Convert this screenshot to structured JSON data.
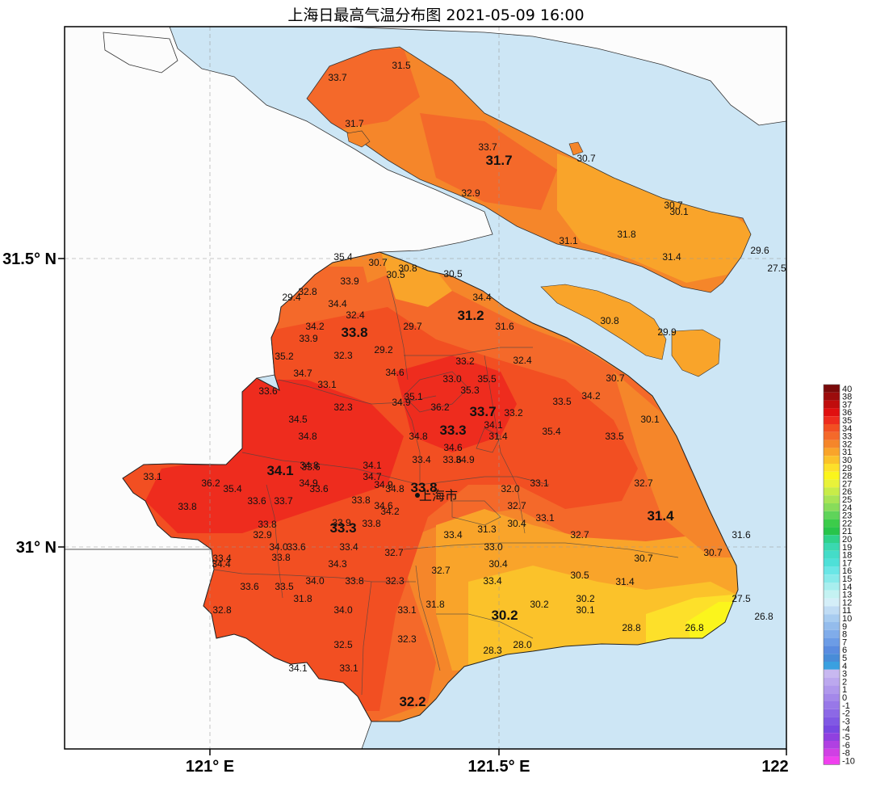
{
  "title": "上海日最高气温分布图 2021-05-09 16:00",
  "axes": {
    "lat_labels": [
      "31.5° N",
      "31° N"
    ],
    "lon_labels": [
      "121° E",
      "121.5° E",
      "122"
    ]
  },
  "city_label": "上海市",
  "colors": {
    "sea": "#cde6f5",
    "land_outside": "#fcfcfc",
    "t34": "#ee2c1e",
    "t33": "#f24f22",
    "t32": "#f4692a",
    "t31": "#f5862a",
    "t30": "#f9a42a",
    "t29": "#fbc22a",
    "t28": "#fde02a",
    "t27": "#fbf51c"
  },
  "legend": {
    "labels": [
      "40",
      "38",
      "37",
      "36",
      "35",
      "34",
      "33",
      "32",
      "31",
      "30",
      "29",
      "28",
      "27",
      "26",
      "25",
      "24",
      "23",
      "22",
      "21",
      "20",
      "19",
      "18",
      "17",
      "16",
      "15",
      "14",
      "13",
      "12",
      "11",
      "10",
      "9",
      "8",
      "7",
      "6",
      "5",
      "4",
      "3",
      "2",
      "1",
      "0",
      "-1",
      "-2",
      "-3",
      "-4",
      "-5",
      "-6",
      "-8",
      "-10"
    ],
    "colors": [
      "#7a0a0a",
      "#9c0c0c",
      "#c00d0d",
      "#e01010",
      "#ee2c1e",
      "#f24f22",
      "#f4692a",
      "#f5862a",
      "#f9a42a",
      "#fbc22a",
      "#fde02a",
      "#fbf51c",
      "#e8f23a",
      "#c8ec48",
      "#a8e455",
      "#88dc5a",
      "#5fd45a",
      "#3ccc4a",
      "#28c44a",
      "#2fd28a",
      "#3ad8b0",
      "#44dcc8",
      "#4ee0d8",
      "#6ae6e6",
      "#88eaea",
      "#a8eeee",
      "#c4f2f2",
      "#d4eef8",
      "#c0dcf4",
      "#a8ccf0",
      "#94bcec",
      "#80acea",
      "#6c9ce6",
      "#5a8ce0",
      "#488cd8",
      "#3aa0e0",
      "#c8b8f0",
      "#bca8ee",
      "#b098ec",
      "#a488ea",
      "#9878e8",
      "#8c68e6",
      "#8058e4",
      "#7848e2",
      "#9040e0",
      "#b040e2",
      "#d040e4",
      "#f040ee"
    ]
  },
  "stations": [
    {
      "v": "31.5"
    },
    {
      "v": "33.7"
    },
    {
      "v": "31.7"
    },
    {
      "v": "33.7"
    },
    {
      "v": "31.7",
      "big": true
    },
    {
      "v": "30.7"
    },
    {
      "v": "32.9"
    },
    {
      "v": "30.7"
    },
    {
      "v": "30.1"
    },
    {
      "v": "31.1"
    },
    {
      "v": "31.8"
    },
    {
      "v": "31.4"
    },
    {
      "v": "29.6"
    },
    {
      "v": "27.5"
    },
    {
      "v": "35.4"
    },
    {
      "v": "30.7"
    },
    {
      "v": "30.8"
    },
    {
      "v": "30.5"
    },
    {
      "v": "30.5"
    },
    {
      "v": "33.9"
    },
    {
      "v": "32.8"
    },
    {
      "v": "29.4"
    },
    {
      "v": "34.4"
    },
    {
      "v": "34.4"
    },
    {
      "v": "32.4"
    },
    {
      "v": "31.2",
      "big": true
    },
    {
      "v": "34.2"
    },
    {
      "v": "33.8",
      "big": true
    },
    {
      "v": "33.9"
    },
    {
      "v": "29.7"
    },
    {
      "v": "31.6"
    },
    {
      "v": "30.8"
    },
    {
      "v": "29.9"
    },
    {
      "v": "35.2"
    },
    {
      "v": "32.3"
    },
    {
      "v": "29.2"
    },
    {
      "v": "33.2"
    },
    {
      "v": "32.4"
    },
    {
      "v": "34.7"
    },
    {
      "v": "33.1"
    },
    {
      "v": "34.6"
    },
    {
      "v": "33.0"
    },
    {
      "v": "35.5"
    },
    {
      "v": "30.7"
    },
    {
      "v": "33.6"
    },
    {
      "v": "35.3"
    },
    {
      "v": "35.1"
    },
    {
      "v": "34.9"
    },
    {
      "v": "33.5"
    },
    {
      "v": "36.2"
    },
    {
      "v": "34.2"
    },
    {
      "v": "33.7",
      "big": true
    },
    {
      "v": "32.3"
    },
    {
      "v": "33.2"
    },
    {
      "v": "34.5"
    },
    {
      "v": "34.1"
    },
    {
      "v": "30.1"
    },
    {
      "v": "33.3",
      "big": true
    },
    {
      "v": "34.8"
    },
    {
      "v": "34.8"
    },
    {
      "v": "31.4"
    },
    {
      "v": "35.4"
    },
    {
      "v": "33.5"
    },
    {
      "v": "34.6"
    },
    {
      "v": "34.1",
      "big": true
    },
    {
      "v": "33.6"
    },
    {
      "v": "33.4"
    },
    {
      "v": "34.8"
    },
    {
      "v": "34.1"
    },
    {
      "v": "34.9"
    },
    {
      "v": "33.1"
    },
    {
      "v": "36.2"
    },
    {
      "v": "34.7"
    },
    {
      "v": "33.6"
    },
    {
      "v": "32.7"
    },
    {
      "v": "35.4"
    },
    {
      "v": "34.9"
    },
    {
      "v": "33.6"
    },
    {
      "v": "34.9"
    },
    {
      "v": "34.8"
    },
    {
      "v": "33.8",
      "big": true
    },
    {
      "v": "33.1"
    },
    {
      "v": "32.0"
    },
    {
      "v": "33.8"
    },
    {
      "v": "33.6"
    },
    {
      "v": "33.7"
    },
    {
      "v": "33.8"
    },
    {
      "v": "34.6"
    },
    {
      "v": "34.2"
    },
    {
      "v": "32.7"
    },
    {
      "v": "31.4",
      "big": true
    },
    {
      "v": "33.1"
    },
    {
      "v": "33.8"
    },
    {
      "v": "33.9"
    },
    {
      "v": "33.3",
      "big": true
    },
    {
      "v": "33.8"
    },
    {
      "v": "30.4"
    },
    {
      "v": "32.9"
    },
    {
      "v": "31.3"
    },
    {
      "v": "33.4"
    },
    {
      "v": "32.7"
    },
    {
      "v": "31.6"
    },
    {
      "v": "34.0"
    },
    {
      "v": "33.6"
    },
    {
      "v": "33.4"
    },
    {
      "v": "33.0"
    },
    {
      "v": "30.7"
    },
    {
      "v": "30.7"
    },
    {
      "v": "33.4"
    },
    {
      "v": "32.7"
    },
    {
      "v": "33.8"
    },
    {
      "v": "34.4"
    },
    {
      "v": "34.3"
    },
    {
      "v": "30.4"
    },
    {
      "v": "32.7"
    },
    {
      "v": "33.6"
    },
    {
      "v": "33.5"
    },
    {
      "v": "34.0"
    },
    {
      "v": "33.8"
    },
    {
      "v": "32.3"
    },
    {
      "v": "33.4"
    },
    {
      "v": "30.5"
    },
    {
      "v": "31.4"
    },
    {
      "v": "31.8"
    },
    {
      "v": "27.5"
    },
    {
      "v": "32.8"
    },
    {
      "v": "34.0"
    },
    {
      "v": "33.1"
    },
    {
      "v": "31.8"
    },
    {
      "v": "30.2"
    },
    {
      "v": "30.2"
    },
    {
      "v": "30.2",
      "big": true
    },
    {
      "v": "30.1"
    },
    {
      "v": "26.8"
    },
    {
      "v": "28.8"
    },
    {
      "v": "26.8"
    },
    {
      "v": "32.3"
    },
    {
      "v": "32.5"
    },
    {
      "v": "28.3"
    },
    {
      "v": "28.0"
    },
    {
      "v": "34.1"
    },
    {
      "v": "33.1"
    },
    {
      "v": "32.2",
      "big": true
    }
  ]
}
